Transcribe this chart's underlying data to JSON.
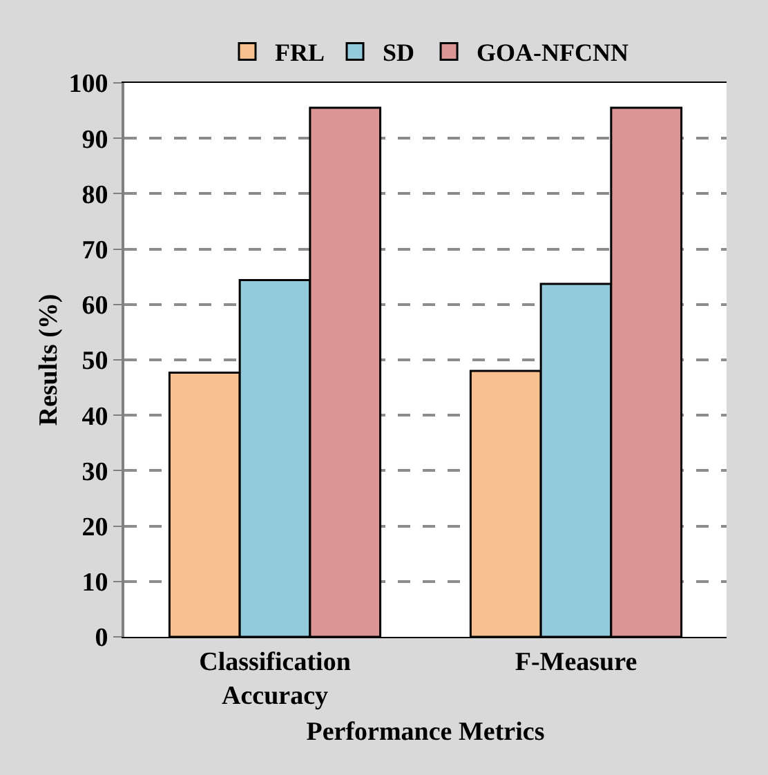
{
  "chart_data": {
    "type": "bar",
    "xlabel": "Performance Metrics",
    "ylabel": "Results (%)",
    "categories": [
      "Classification Accuracy",
      "F-Measure"
    ],
    "series": [
      {
        "name": "FRL",
        "color": "#f9c08f",
        "values": [
          47.7,
          48.0
        ]
      },
      {
        "name": "SD",
        "color": "#93cbdc",
        "values": [
          64.4,
          63.7
        ]
      },
      {
        "name": "GOA-NFCNN",
        "color": "#da9594",
        "values": [
          95.5,
          95.5
        ]
      }
    ],
    "ylim": [
      0,
      100
    ],
    "yticks": [
      0,
      10,
      20,
      30,
      40,
      50,
      60,
      70,
      80,
      90,
      100
    ],
    "grid": "y",
    "legend": "top"
  }
}
